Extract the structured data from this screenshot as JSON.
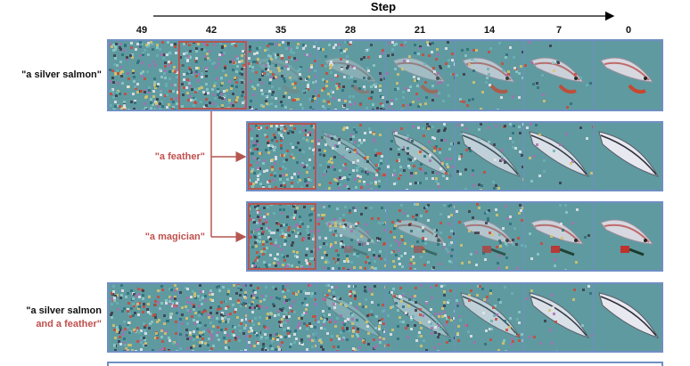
{
  "axis": {
    "title": "Step",
    "ticks": [
      "49",
      "42",
      "35",
      "28",
      "21",
      "14",
      "7",
      "0"
    ]
  },
  "rows": [
    {
      "prompt_black": "\"a silver salmon\"",
      "prompt_red": "",
      "start_step": "49",
      "content": "salmon"
    },
    {
      "prompt_black": "",
      "prompt_red": "\"a feather\"",
      "start_step": "35",
      "content": "feather"
    },
    {
      "prompt_black": "",
      "prompt_red": "\"a magician\"",
      "start_step": "35",
      "content": "magician"
    },
    {
      "prompt_black": "\"a silver salmon",
      "prompt_red": "and a feather\"",
      "start_step": "49",
      "content": "mixed"
    }
  ],
  "colors": {
    "strip_border": "#6f8fc4",
    "highlight_border": "#b5574f",
    "arrow": "#b5574f",
    "red_text": "#c0504d",
    "teal_bg": "#5f9aa0",
    "silver": "#d8d8e0"
  }
}
